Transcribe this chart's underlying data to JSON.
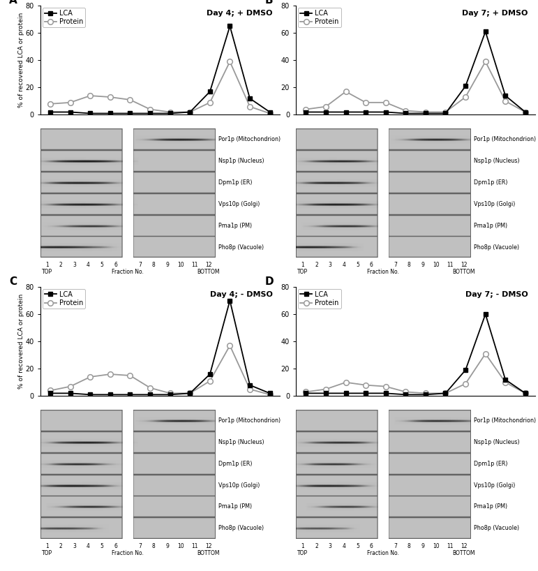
{
  "panels": [
    {
      "label": "A",
      "title": "Day 4; + DMSO",
      "lca": [
        2,
        2,
        1,
        1,
        1,
        1,
        1,
        2,
        17,
        65,
        12,
        2
      ],
      "protein": [
        8,
        9,
        14,
        13,
        11,
        4,
        2,
        2,
        9,
        39,
        6,
        1
      ]
    },
    {
      "label": "B",
      "title": "Day 7; + DMSO",
      "lca": [
        2,
        2,
        2,
        2,
        2,
        1,
        1,
        1,
        21,
        61,
        14,
        2
      ],
      "protein": [
        4,
        6,
        17,
        9,
        9,
        3,
        2,
        2,
        13,
        39,
        10,
        2
      ]
    },
    {
      "label": "C",
      "title": "Day 4; - DMSO",
      "lca": [
        2,
        2,
        1,
        1,
        1,
        1,
        1,
        2,
        16,
        70,
        8,
        2
      ],
      "protein": [
        4,
        7,
        14,
        16,
        15,
        6,
        2,
        2,
        11,
        37,
        5,
        1
      ]
    },
    {
      "label": "D",
      "title": "Day 7; - DMSO",
      "lca": [
        2,
        2,
        2,
        2,
        2,
        1,
        1,
        2,
        19,
        60,
        12,
        2
      ],
      "protein": [
        3,
        5,
        10,
        8,
        7,
        3,
        2,
        2,
        9,
        31,
        10,
        2
      ]
    }
  ],
  "fractions": [
    1,
    2,
    3,
    4,
    5,
    6,
    7,
    8,
    9,
    10,
    11,
    12
  ],
  "ylim": [
    0,
    80
  ],
  "yticks": [
    0,
    20,
    40,
    60,
    80
  ],
  "ylabel": "% of recovered LCA or protein",
  "xlabel": "Fraction No.",
  "lca_color": "#000000",
  "protein_color": "#999999",
  "blot_labels": [
    "Por1p (Mitochondrion)",
    "Nsp1p (Nucleus)",
    "Dpm1p (ER)",
    "Vps10p (Golgi)",
    "Pma1p (PM)",
    "Pho8p (Vacuole)"
  ],
  "blot_bg": "#c0c0c0",
  "title_fontsize": 8,
  "axis_fontsize": 7,
  "label_fontsize": 11,
  "legend_fontsize": 7,
  "blot_bands": {
    "A": [
      [
        [
          9,
          0.4,
          0.65
        ],
        [
          10,
          0.55,
          0.9
        ],
        [
          11,
          0.45,
          0.6
        ]
      ],
      [
        [
          2,
          0.3,
          0.35
        ],
        [
          3,
          0.5,
          0.85
        ],
        [
          4,
          0.6,
          1.0
        ],
        [
          5,
          0.45,
          0.65
        ]
      ],
      [
        [
          2,
          0.35,
          0.5
        ],
        [
          3,
          0.55,
          0.9
        ],
        [
          4,
          0.55,
          0.8
        ],
        [
          5,
          0.35,
          0.4
        ]
      ],
      [
        [
          2,
          0.3,
          0.35
        ],
        [
          3,
          0.5,
          0.8
        ],
        [
          4,
          0.6,
          0.95
        ],
        [
          5,
          0.4,
          0.45
        ]
      ],
      [
        [
          3,
          0.4,
          0.4
        ],
        [
          4,
          0.5,
          0.75
        ],
        [
          5,
          0.4,
          0.55
        ]
      ],
      [
        [
          1,
          0.55,
          0.9
        ],
        [
          2,
          0.5,
          0.75
        ],
        [
          3,
          0.45,
          0.6
        ],
        [
          4,
          0.35,
          0.4
        ],
        [
          5,
          0.25,
          0.25
        ]
      ]
    ],
    "B": [
      [
        [
          9,
          0.4,
          0.6
        ],
        [
          10,
          0.5,
          0.85
        ],
        [
          11,
          0.4,
          0.6
        ]
      ],
      [
        [
          2,
          0.25,
          0.25
        ],
        [
          3,
          0.45,
          0.65
        ],
        [
          4,
          0.55,
          0.9
        ],
        [
          5,
          0.35,
          0.45
        ]
      ],
      [
        [
          2,
          0.35,
          0.5
        ],
        [
          3,
          0.55,
          0.9
        ],
        [
          4,
          0.5,
          0.75
        ],
        [
          5,
          0.25,
          0.3
        ]
      ],
      [
        [
          2,
          0.25,
          0.3
        ],
        [
          3,
          0.6,
          0.95
        ],
        [
          4,
          0.55,
          0.85
        ],
        [
          5,
          0.35,
          0.4
        ]
      ],
      [
        [
          3,
          0.35,
          0.4
        ],
        [
          4,
          0.5,
          0.8
        ],
        [
          5,
          0.4,
          0.6
        ]
      ],
      [
        [
          1,
          0.6,
          0.95
        ],
        [
          2,
          0.5,
          0.7
        ],
        [
          3,
          0.4,
          0.5
        ],
        [
          4,
          0.25,
          0.3
        ]
      ]
    ],
    "C": [
      [
        [
          9,
          0.35,
          0.5
        ],
        [
          10,
          0.55,
          0.9
        ],
        [
          11,
          0.4,
          0.6
        ]
      ],
      [
        [
          2,
          0.25,
          0.3
        ],
        [
          3,
          0.45,
          0.7
        ],
        [
          4,
          0.6,
          1.0
        ],
        [
          5,
          0.35,
          0.5
        ]
      ],
      [
        [
          2,
          0.25,
          0.35
        ],
        [
          3,
          0.5,
          0.85
        ],
        [
          4,
          0.45,
          0.65
        ]
      ],
      [
        [
          2,
          0.45,
          0.8
        ],
        [
          3,
          0.55,
          0.9
        ],
        [
          4,
          0.5,
          0.75
        ],
        [
          5,
          0.25,
          0.3
        ]
      ],
      [
        [
          3,
          0.35,
          0.4
        ],
        [
          4,
          0.5,
          0.85
        ],
        [
          5,
          0.4,
          0.55
        ]
      ],
      [
        [
          1,
          0.35,
          0.5
        ],
        [
          2,
          0.45,
          0.65
        ],
        [
          3,
          0.35,
          0.5
        ],
        [
          4,
          0.25,
          0.3
        ]
      ]
    ],
    "D": [
      [
        [
          9,
          0.35,
          0.5
        ],
        [
          10,
          0.5,
          0.85
        ],
        [
          11,
          0.35,
          0.55
        ],
        [
          12,
          0.3,
          0.45
        ]
      ],
      [
        [
          2,
          0.25,
          0.25
        ],
        [
          3,
          0.45,
          0.6
        ],
        [
          4,
          0.55,
          0.85
        ],
        [
          5,
          0.3,
          0.4
        ]
      ],
      [
        [
          2,
          0.25,
          0.35
        ],
        [
          3,
          0.5,
          0.8
        ],
        [
          4,
          0.4,
          0.6
        ]
      ],
      [
        [
          2,
          0.4,
          0.75
        ],
        [
          3,
          0.55,
          0.85
        ],
        [
          4,
          0.45,
          0.7
        ],
        [
          5,
          0.25,
          0.25
        ]
      ],
      [
        [
          3,
          0.3,
          0.35
        ],
        [
          4,
          0.45,
          0.75
        ],
        [
          5,
          0.35,
          0.5
        ]
      ],
      [
        [
          1,
          0.3,
          0.45
        ],
        [
          2,
          0.4,
          0.6
        ],
        [
          3,
          0.3,
          0.45
        ],
        [
          4,
          0.2,
          0.25
        ]
      ]
    ]
  }
}
